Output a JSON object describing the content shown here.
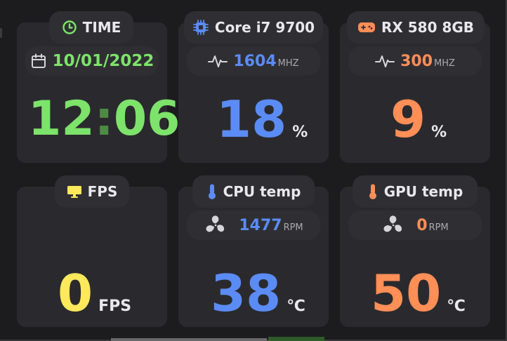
{
  "colors": {
    "green": "#7de36a",
    "blue": "#5b8bf5",
    "orange": "#ff8e57",
    "yellow": "#fde95b",
    "text": "#e9e9ec"
  },
  "time_card": {
    "title": "TIME",
    "title_icon": "clock-icon",
    "date": "10/01/2022",
    "date_icon": "calendar-icon",
    "hours": "12",
    "separator": ":",
    "minutes": "06"
  },
  "cpu_card": {
    "title": "Core i7 9700",
    "title_icon": "cpu-chip-icon",
    "clock_value": "1604",
    "clock_unit": "MHZ",
    "clock_icon": "pulse-icon",
    "usage_value": "18",
    "usage_unit": "%"
  },
  "gpu_card": {
    "title": "RX 580 8GB",
    "title_icon": "gamepad-icon",
    "clock_value": "300",
    "clock_unit": "MHZ",
    "clock_icon": "pulse-icon",
    "usage_value": "9",
    "usage_unit": "%"
  },
  "fps_card": {
    "title": "FPS",
    "title_icon": "monitor-icon",
    "value": "0",
    "unit": "FPS"
  },
  "cpu_temp_card": {
    "title": "CPU temp",
    "title_icon": "thermometer-icon",
    "fan_value": "1477",
    "fan_unit": "RPM",
    "fan_icon": "fan-icon",
    "temp_value": "38",
    "temp_unit": "℃"
  },
  "gpu_temp_card": {
    "title": "GPU temp",
    "title_icon": "thermometer-icon",
    "fan_value": "0",
    "fan_unit": "RPM",
    "fan_icon": "fan-icon",
    "temp_value": "50",
    "temp_unit": "℃"
  }
}
